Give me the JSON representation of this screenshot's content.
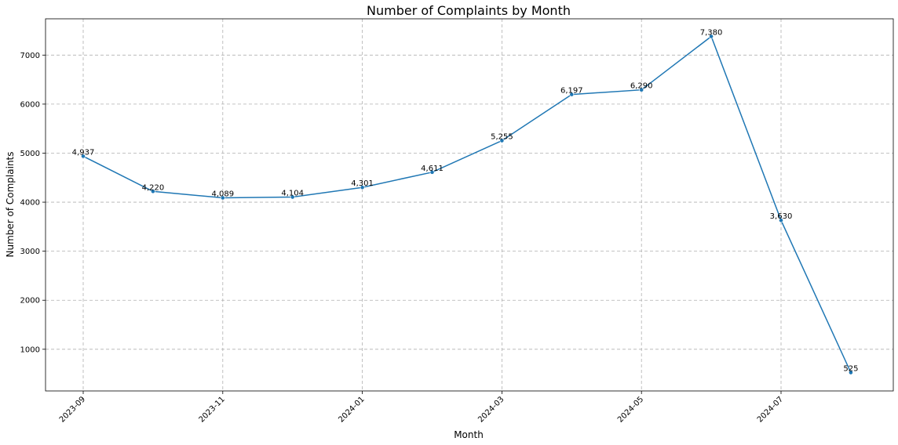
{
  "chart_data": {
    "type": "line",
    "title": "Number of Complaints by Month",
    "xlabel": "Month",
    "ylabel": "Number of Complaints",
    "x": [
      "2023-09",
      "2023-10",
      "2023-11",
      "2023-12",
      "2024-01",
      "2024-02",
      "2024-03",
      "2024-04",
      "2024-05",
      "2024-06",
      "2024-07",
      "2024-08"
    ],
    "x_tick_labels": [
      "2023-09",
      "2023-11",
      "2024-01",
      "2024-03",
      "2024-05",
      "2024-07"
    ],
    "y_ticks": [
      1000,
      2000,
      3000,
      4000,
      5000,
      6000,
      7000
    ],
    "ylim": [
      150,
      7740
    ],
    "series": [
      {
        "values": [
          4937,
          4220,
          4089,
          4104,
          4301,
          4611,
          5255,
          6197,
          6290,
          7380,
          3630,
          525
        ],
        "data_labels": [
          "4,937",
          "4,220",
          "4,089",
          "4,104",
          "4,301",
          "4,611",
          "5,255",
          "6,197",
          "6,290",
          "7,380",
          "3,630",
          "525"
        ]
      }
    ],
    "grid": true,
    "colors": {
      "line": "#1f77b4",
      "marker": "#1f77b4"
    }
  }
}
